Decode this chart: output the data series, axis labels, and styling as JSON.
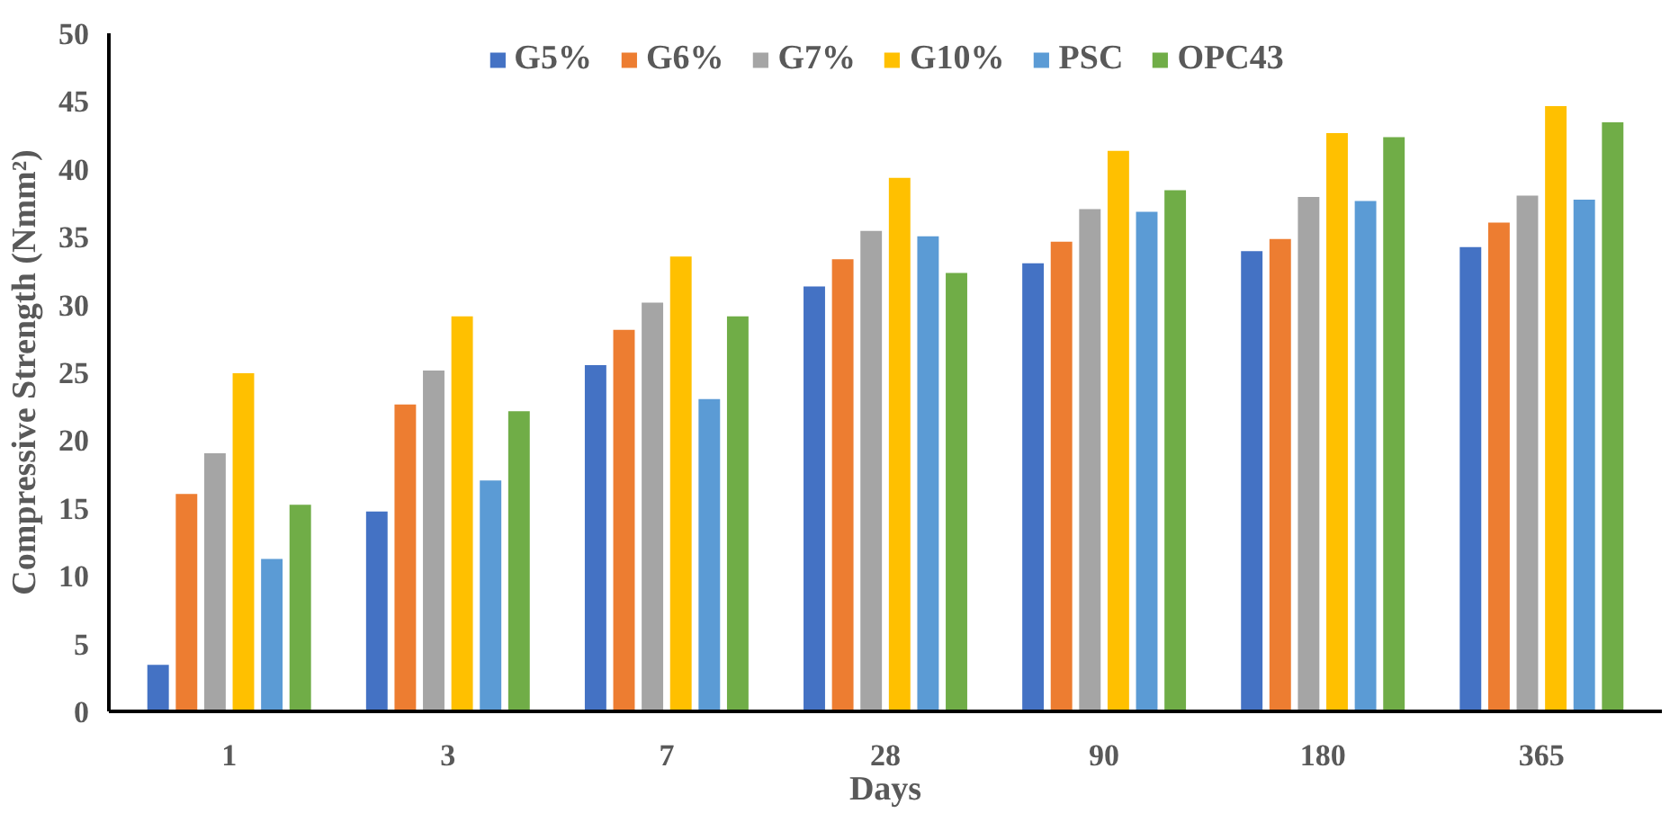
{
  "chart_data": {
    "type": "bar",
    "xlabel": "Days",
    "ylabel": "Compressive Strength (Nmm²)",
    "categories": [
      "1",
      "3",
      "7",
      "28",
      "90",
      "180",
      "365"
    ],
    "series": [
      {
        "name": "G5%",
        "color": "#4472c4",
        "values": [
          3.5,
          14.8,
          25.6,
          31.4,
          33.1,
          34.0,
          34.3
        ]
      },
      {
        "name": "G6%",
        "color": "#ed7d31",
        "values": [
          16.1,
          22.7,
          28.2,
          33.4,
          34.7,
          34.9,
          36.1
        ]
      },
      {
        "name": "G7%",
        "color": "#a5a5a5",
        "values": [
          19.1,
          25.2,
          30.2,
          35.5,
          37.1,
          38.0,
          38.1
        ]
      },
      {
        "name": "G10%",
        "color": "#ffc000",
        "values": [
          25.0,
          29.2,
          33.6,
          39.4,
          41.4,
          42.7,
          44.7
        ]
      },
      {
        "name": "PSC",
        "color": "#5b9bd5",
        "values": [
          11.3,
          17.1,
          23.1,
          35.1,
          36.9,
          37.7,
          37.8
        ]
      },
      {
        "name": "OPC43",
        "color": "#70ad47",
        "values": [
          15.3,
          22.2,
          29.2,
          32.4,
          38.5,
          42.4,
          43.5
        ]
      }
    ],
    "ylim": [
      0,
      50
    ],
    "yticks": [
      0,
      5,
      10,
      15,
      20,
      25,
      30,
      35,
      40,
      45,
      50
    ],
    "grid": false,
    "legend": "top"
  }
}
